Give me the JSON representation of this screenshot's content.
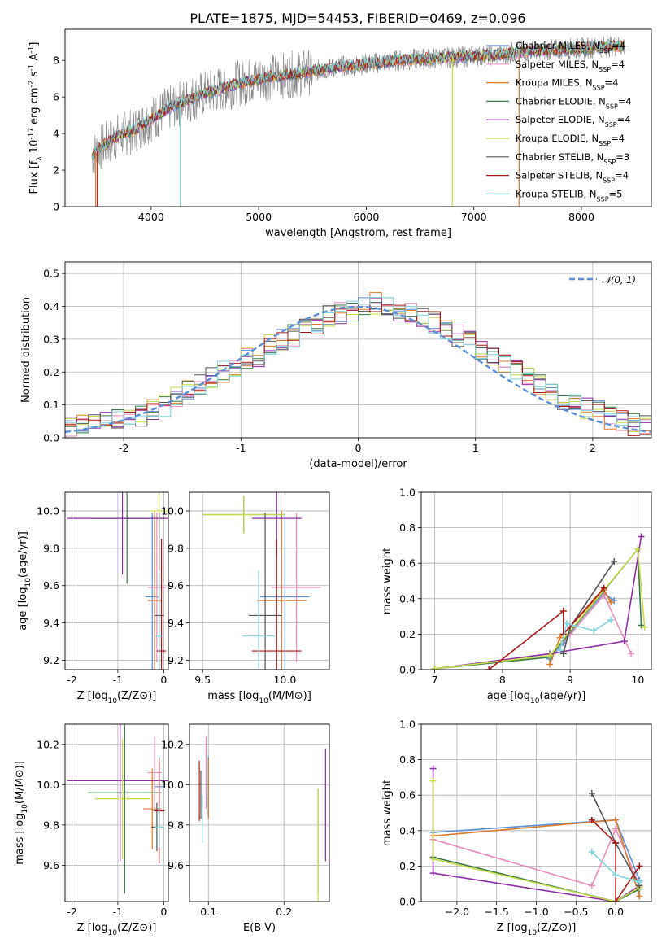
{
  "figure_title": "PLATE=1875, MJD=54453, FIBERID=0469, z=0.096",
  "models": [
    {
      "key": "chabrier_miles",
      "legend": "Chabrier MILES, N_SSP=4",
      "nssp": 4,
      "color": "#5b8fd6"
    },
    {
      "key": "salpeter_miles",
      "legend": "Salpeter MILES, N_SSP=4",
      "nssp": 4,
      "color": "#e88fbf"
    },
    {
      "key": "kroupa_miles",
      "legend": "Kroupa MILES, N_SSP=4",
      "nssp": 4,
      "color": "#e07b2a"
    },
    {
      "key": "chabrier_elodie",
      "legend": "Chabrier ELODIE, N_SSP=4",
      "nssp": 4,
      "color": "#3c7a47"
    },
    {
      "key": "salpeter_elodie",
      "legend": "Salpeter ELODIE, N_SSP=4",
      "nssp": 4,
      "color": "#8e2fa8"
    },
    {
      "key": "kroupa_elodie",
      "legend": "Kroupa ELODIE, N_SSP=4",
      "nssp": 4,
      "color": "#c7dc4a"
    },
    {
      "key": "chabrier_stelib",
      "legend": "Chabrier STELIB, N_SSP=3",
      "nssp": 3,
      "color": "#555555"
    },
    {
      "key": "salpeter_stelib",
      "legend": "Salpeter STELIB, N_SSP=4",
      "nssp": 4,
      "color": "#b01818"
    },
    {
      "key": "kroupa_stelib",
      "legend": "Kroupa STELIB, N_SSP=5",
      "nssp": 5,
      "color": "#7fd6dc"
    }
  ],
  "chart_data": [
    {
      "id": "spectrum",
      "type": "line",
      "title": "PLATE=1875, MJD=54453, FIBERID=0469, z=0.096",
      "xlabel": "wavelength [Angstrom, rest frame]",
      "ylabel": "Flux [f_λ 10^-17 erg cm^-2 s^-1 A^-1]",
      "xlim": [
        3200,
        8650
      ],
      "ylim": [
        0,
        9.7
      ],
      "xticks": [
        4000,
        5000,
        6000,
        7000,
        8000
      ],
      "yticks": [
        0,
        2,
        4,
        6,
        8
      ],
      "legend_position": "right",
      "observed_color": "#808080",
      "continuum": {
        "x": [
          3450,
          3550,
          3700,
          3850,
          4000,
          4200,
          4500,
          4800,
          5100,
          5400,
          5700,
          6000,
          6300,
          6600,
          6900,
          7200,
          7500,
          7800,
          8100,
          8400
        ],
        "y": [
          2.8,
          3.3,
          3.9,
          4.2,
          4.8,
          5.5,
          6.2,
          6.7,
          7.1,
          7.3,
          7.6,
          7.8,
          8.0,
          8.1,
          8.2,
          8.3,
          8.5,
          8.6,
          8.7,
          8.8
        ]
      },
      "model_spikes": [
        {
          "x": 3485,
          "y": 0,
          "color": "#e07b2a"
        },
        {
          "x": 3500,
          "y": 0,
          "color": "#b01818"
        },
        {
          "x": 4270,
          "y": 0,
          "color": "#7fd6dc"
        },
        {
          "x": 6800,
          "y": 0,
          "color": "#c7dc4a"
        },
        {
          "x": 7420,
          "y": 0,
          "color": "#e07b2a"
        }
      ]
    },
    {
      "id": "residuals",
      "type": "histogram",
      "xlabel": "(data-model)/error",
      "ylabel": "Normed distribution",
      "xlim": [
        -2.5,
        2.5
      ],
      "ylim": [
        0,
        0.535
      ],
      "xticks": [
        -2,
        -1,
        0,
        1,
        2
      ],
      "yticks": [
        0.0,
        0.1,
        0.2,
        0.3,
        0.4,
        0.5
      ],
      "grid": true,
      "reference_legend": "𝒩(0, 1)",
      "reference_color": "#5b8fd6",
      "bin_width": 0.1,
      "bin_start": -2.5,
      "base_values": [
        0.03,
        0.04,
        0.04,
        0.05,
        0.06,
        0.06,
        0.07,
        0.09,
        0.1,
        0.12,
        0.14,
        0.16,
        0.18,
        0.2,
        0.22,
        0.24,
        0.25,
        0.28,
        0.3,
        0.31,
        0.33,
        0.35,
        0.37,
        0.38,
        0.39,
        0.4,
        0.41,
        0.4,
        0.39,
        0.38,
        0.37,
        0.35,
        0.33,
        0.31,
        0.29,
        0.27,
        0.25,
        0.23,
        0.2,
        0.18,
        0.16,
        0.14,
        0.12,
        0.1,
        0.09,
        0.08,
        0.06,
        0.05,
        0.04,
        0.04
      ]
    },
    {
      "id": "age_vs_Z",
      "type": "scatter",
      "xlabel": "Z [log10(Z/Z⊙)]",
      "ylabel": "age  [log10(age/yr)]",
      "xlim": [
        -2.15,
        0.1
      ],
      "ylim": [
        9.15,
        10.1
      ],
      "xticks": [
        -2,
        -1,
        0
      ],
      "yticks": [
        9.2,
        9.4,
        9.6,
        9.8,
        10.0
      ],
      "grid": true,
      "points": [
        {
          "model": "chabrier_miles",
          "x": -0.25,
          "y": 9.54,
          "xerr": 0.15,
          "yerr": 0.45
        },
        {
          "model": "salpeter_miles",
          "x": -0.15,
          "y": 9.59,
          "xerr": 0.2,
          "yerr": 0.4
        },
        {
          "model": "kroupa_miles",
          "x": -0.2,
          "y": 9.52,
          "xerr": 0.15,
          "yerr": 0.48
        },
        {
          "model": "chabrier_elodie",
          "x": -0.8,
          "y": 9.96,
          "xerr": 0.75,
          "yerr": 0.35
        },
        {
          "model": "salpeter_elodie",
          "x": -0.9,
          "y": 9.96,
          "xerr": 1.2,
          "yerr": 0.3
        },
        {
          "model": "kroupa_elodie",
          "x": -0.1,
          "y": 10.0,
          "xerr": 0.2,
          "yerr": 0.1
        },
        {
          "model": "chabrier_stelib",
          "x": -0.1,
          "y": 9.44,
          "xerr": 0.1,
          "yerr": 0.55
        },
        {
          "model": "salpeter_stelib",
          "x": -0.05,
          "y": 9.25,
          "xerr": 0.1,
          "yerr": 0.6
        },
        {
          "model": "kroupa_stelib",
          "x": -0.1,
          "y": 9.33,
          "xerr": 0.08,
          "yerr": 0.35
        }
      ]
    },
    {
      "id": "age_vs_mass",
      "type": "scatter",
      "xlabel": "mass [log10(M/M⊙)]",
      "ylabel": "",
      "xlim": [
        9.42,
        10.27
      ],
      "ylim": [
        9.15,
        10.1
      ],
      "xticks": [
        9.5,
        10.0
      ],
      "yticks": [
        9.2,
        9.4,
        9.6,
        9.8,
        10.0
      ],
      "grid": true,
      "points": [
        {
          "model": "chabrier_miles",
          "x": 10.0,
          "y": 9.54,
          "xerr": 0.15,
          "yerr": 0.45
        },
        {
          "model": "salpeter_miles",
          "x": 10.07,
          "y": 9.59,
          "xerr": 0.15,
          "yerr": 0.4
        },
        {
          "model": "kroupa_miles",
          "x": 9.98,
          "y": 9.52,
          "xerr": 0.15,
          "yerr": 0.48
        },
        {
          "model": "chabrier_elodie",
          "x": 9.75,
          "y": 9.98,
          "xerr": 0.25,
          "yerr": 0.1
        },
        {
          "model": "salpeter_elodie",
          "x": 9.95,
          "y": 9.96,
          "xerr": 0.15,
          "yerr": 0.2
        },
        {
          "model": "kroupa_elodie",
          "x": 9.75,
          "y": 9.98,
          "xerr": 0.25,
          "yerr": 0.1
        },
        {
          "model": "chabrier_stelib",
          "x": 9.88,
          "y": 9.44,
          "xerr": 0.1,
          "yerr": 0.55
        },
        {
          "model": "salpeter_stelib",
          "x": 9.95,
          "y": 9.25,
          "xerr": 0.15,
          "yerr": 0.6
        },
        {
          "model": "kroupa_stelib",
          "x": 9.84,
          "y": 9.33,
          "xerr": 0.1,
          "yerr": 0.35
        }
      ]
    },
    {
      "id": "massweight_vs_age",
      "type": "line",
      "xlabel": "age  [log10(age/yr)]",
      "ylabel": "mass weight",
      "xlim": [
        6.8,
        10.2
      ],
      "ylim": [
        0,
        1.0
      ],
      "xticks": [
        7,
        8,
        9,
        10
      ],
      "yticks": [
        0.0,
        0.2,
        0.4,
        0.6,
        0.8,
        1.0
      ],
      "grid": true,
      "series": [
        {
          "model": "chabrier_miles",
          "x": [
            8.7,
            8.9,
            9.5,
            9.65
          ],
          "y": [
            0.06,
            0.15,
            0.43,
            0.39
          ]
        },
        {
          "model": "salpeter_miles",
          "x": [
            8.75,
            9.0,
            9.5,
            9.9
          ],
          "y": [
            0.09,
            0.2,
            0.42,
            0.09
          ]
        },
        {
          "model": "kroupa_miles",
          "x": [
            8.7,
            8.85,
            9.5,
            9.6
          ],
          "y": [
            0.03,
            0.18,
            0.45,
            0.38
          ]
        },
        {
          "model": "chabrier_elodie",
          "x": [
            7.0,
            8.7,
            10.0,
            10.05
          ],
          "y": [
            0.005,
            0.07,
            0.68,
            0.25
          ]
        },
        {
          "model": "salpeter_elodie",
          "x": [
            7.0,
            8.7,
            9.8,
            10.05
          ],
          "y": [
            0.005,
            0.09,
            0.16,
            0.75
          ]
        },
        {
          "model": "kroupa_elodie",
          "x": [
            7.0,
            8.7,
            10.0,
            10.1
          ],
          "y": [
            0.005,
            0.08,
            0.68,
            0.24
          ]
        },
        {
          "model": "chabrier_stelib",
          "x": [
            8.9,
            9.0,
            9.65
          ],
          "y": [
            0.09,
            0.24,
            0.61
          ]
        },
        {
          "model": "salpeter_stelib",
          "x": [
            7.8,
            8.9,
            8.9,
            9.5
          ],
          "y": [
            0.0,
            0.33,
            0.2,
            0.46
          ]
        },
        {
          "model": "kroupa_stelib",
          "x": [
            8.85,
            8.95,
            9.35,
            9.6
          ],
          "y": [
            0.11,
            0.26,
            0.22,
            0.28
          ]
        }
      ]
    },
    {
      "id": "mass_vs_Z",
      "type": "scatter",
      "xlabel": "Z [log10(Z/Z⊙)]",
      "ylabel": "mass [log10(M/M⊙)]",
      "xlim": [
        -2.15,
        0.1
      ],
      "ylim": [
        9.42,
        10.3
      ],
      "xticks": [
        -2,
        -1,
        0
      ],
      "yticks": [
        9.6,
        9.8,
        10.0,
        10.2
      ],
      "grid": true,
      "points": [
        {
          "model": "chabrier_miles",
          "x": -0.1,
          "y": 9.99,
          "xerr": 0.1,
          "yerr": 0.15
        },
        {
          "model": "salpeter_miles",
          "x": -0.2,
          "y": 10.06,
          "xerr": 0.15,
          "yerr": 0.18
        },
        {
          "model": "kroupa_miles",
          "x": -0.25,
          "y": 9.88,
          "xerr": 0.2,
          "yerr": 0.2
        },
        {
          "model": "chabrier_elodie",
          "x": -0.85,
          "y": 9.96,
          "xerr": 0.8,
          "yerr": 0.5
        },
        {
          "model": "salpeter_elodie",
          "x": -0.95,
          "y": 10.02,
          "xerr": 1.15,
          "yerr": 0.4
        },
        {
          "model": "kroupa_elodie",
          "x": -0.9,
          "y": 9.93,
          "xerr": 0.6,
          "yerr": 0.3
        },
        {
          "model": "chabrier_stelib",
          "x": -0.15,
          "y": 9.79,
          "xerr": 0.12,
          "yerr": 0.12
        },
        {
          "model": "salpeter_stelib",
          "x": -0.1,
          "y": 9.87,
          "xerr": 0.12,
          "yerr": 0.26
        },
        {
          "model": "kroupa_stelib",
          "x": -0.1,
          "y": 9.79,
          "xerr": 0.1,
          "yerr": 0.1
        }
      ]
    },
    {
      "id": "mass_vs_EBV",
      "type": "scatter",
      "xlabel": "E(B-V)",
      "ylabel": "",
      "xlim": [
        0.075,
        0.26
      ],
      "ylim": [
        9.42,
        10.3
      ],
      "xticks": [
        0.1,
        0.2
      ],
      "yticks": [
        9.6,
        9.8,
        10.0,
        10.2
      ],
      "grid": true,
      "points": [
        {
          "model": "chabrier_miles",
          "x": 0.1,
          "y": 9.99,
          "yerr": 0.15
        },
        {
          "model": "salpeter_miles",
          "x": 0.097,
          "y": 10.06,
          "yerr": 0.18
        },
        {
          "model": "kroupa_miles",
          "x": 0.1,
          "y": 9.98,
          "yerr": 0.15
        },
        {
          "model": "chabrier_elodie",
          "x": 0.245,
          "y": 9.72,
          "yerr": 0.26
        },
        {
          "model": "salpeter_elodie",
          "x": 0.255,
          "y": 9.9,
          "yerr": 0.28
        },
        {
          "model": "kroupa_elodie",
          "x": 0.245,
          "y": 9.7,
          "yerr": 0.28
        },
        {
          "model": "chabrier_stelib",
          "x": 0.09,
          "y": 9.95,
          "yerr": 0.12
        },
        {
          "model": "salpeter_stelib",
          "x": 0.088,
          "y": 9.97,
          "yerr": 0.15
        },
        {
          "model": "kroupa_stelib",
          "x": 0.092,
          "y": 9.83,
          "yerr": 0.12
        }
      ]
    },
    {
      "id": "massweight_vs_Z",
      "type": "line",
      "xlabel": "Z [log10(Z/Z⊙)]",
      "ylabel": "mass weight",
      "xlim": [
        -2.45,
        0.45
      ],
      "ylim": [
        0,
        1.0
      ],
      "xticks": [
        -2.0,
        -1.5,
        -1.0,
        -0.5,
        0.0
      ],
      "yticks": [
        0.0,
        0.2,
        0.4,
        0.6,
        0.8,
        1.0
      ],
      "grid": true,
      "series": [
        {
          "model": "chabrier_miles",
          "x": [
            -2.3,
            0.0,
            0.3
          ],
          "y": [
            0.39,
            0.46,
            0.12
          ]
        },
        {
          "model": "salpeter_miles",
          "x": [
            -2.3,
            -0.3,
            0.0,
            0.3
          ],
          "y": [
            0.35,
            0.09,
            0.41,
            0.09
          ]
        },
        {
          "model": "kroupa_miles",
          "x": [
            -2.3,
            0.0,
            0.3
          ],
          "y": [
            0.37,
            0.46,
            0.03
          ]
        },
        {
          "model": "chabrier_elodie",
          "x": [
            -2.3,
            0.0,
            0.3
          ],
          "y": [
            0.25,
            0.0,
            0.07
          ]
        },
        {
          "model": "salpeter_elodie",
          "x": [
            -2.3,
            -2.3,
            0.0,
            0.3
          ],
          "y": [
            0.75,
            0.16,
            0.0,
            0.09
          ]
        },
        {
          "model": "kroupa_elodie",
          "x": [
            -2.3,
            -2.3,
            0.0,
            0.3
          ],
          "y": [
            0.68,
            0.24,
            0.0,
            0.08
          ]
        },
        {
          "model": "chabrier_stelib",
          "x": [
            -0.3,
            0.0,
            0.3
          ],
          "y": [
            0.61,
            0.33,
            0.09
          ]
        },
        {
          "model": "salpeter_stelib",
          "x": [
            -0.3,
            0.0,
            0.0,
            0.3
          ],
          "y": [
            0.46,
            0.33,
            0.0,
            0.2
          ]
        },
        {
          "model": "kroupa_stelib",
          "x": [
            -0.3,
            0.0,
            0.3
          ],
          "y": [
            0.28,
            0.15,
            0.11
          ]
        }
      ]
    }
  ]
}
